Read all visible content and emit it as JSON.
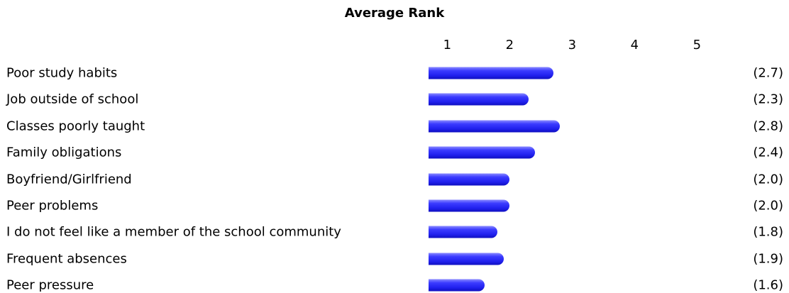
{
  "chart_data": {
    "type": "bar",
    "orientation": "horizontal",
    "title": "Average Rank",
    "xlabel": "",
    "ylabel": "",
    "ticks": [
      "1",
      "2",
      "3",
      "4",
      "5"
    ],
    "categories": [
      "Poor study habits",
      "Job outside of school",
      "Classes poorly taught",
      "Family obligations",
      "Boyfriend/Girlfriend",
      "Peer problems",
      "I do not feel like a member of the school community",
      "Frequent absences",
      "Peer pressure"
    ],
    "values": [
      2.7,
      2.3,
      2.8,
      2.4,
      2.0,
      2.0,
      1.8,
      1.9,
      1.6
    ],
    "value_labels": [
      "(2.7)",
      "(2.3)",
      "(2.8)",
      "(2.4)",
      "(2.0)",
      "(2.0)",
      "(1.8)",
      "(1.9)",
      "(1.6)"
    ],
    "xlim": [
      0.7,
      5
    ],
    "bar_color": "#2a2aee",
    "grid": false,
    "legend": "none"
  }
}
